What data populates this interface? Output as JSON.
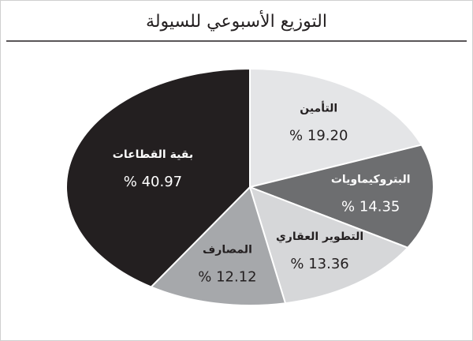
{
  "chart_data": {
    "type": "pie",
    "title": "التوزيع الأسبوعي للسيولة",
    "categories": [
      "التأمين",
      "البتروكيماويات",
      "التطوير العقاري",
      "المصارف",
      "بقية القطاعات"
    ],
    "values": [
      19.2,
      14.35,
      13.36,
      12.12,
      40.97
    ],
    "value_labels": [
      "% 19.20",
      "% 14.35",
      "% 13.36",
      "% 12.12",
      "% 40.97"
    ],
    "colors": [
      "#e4e5e7",
      "#6d6e70",
      "#d6d7d9",
      "#a6a8ab",
      "#231f20"
    ],
    "label_colors": [
      "#231f20",
      "#ffffff",
      "#231f20",
      "#231f20",
      "#ffffff"
    ]
  }
}
